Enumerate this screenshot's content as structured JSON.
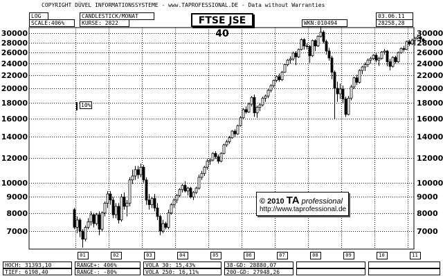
{
  "copyright": "COPYRIGHT DÜVEL INFORMATIONSSYSTEME - www.TAPROFESSIONAL.DE - Data without Warranties",
  "header": {
    "log": "LOG",
    "scale": "SCALE:406%",
    "chart_type": "CANDLESTICK/MONAT",
    "kurse": "KURSE: 2822",
    "wkn": "WKN:010494",
    "date": "03.06.11",
    "last": "28258,28"
  },
  "title": "FTSE JSE 40",
  "pct_marker": "10%",
  "stamp": {
    "copy": "© 2010",
    "ta": "TA",
    "pro": "professional",
    "url": "http://www.taprofessional.de"
  },
  "footer": {
    "hoch": "HOCH: 31393,10",
    "tief": "TIEF: 6198,40",
    "range_plus": "RANGE+:   406%",
    "range_minus": "RANGE-:  -80%",
    "vola30": "VOLA  30: 15,43%",
    "vola250": "VOLA 250: 16,11%",
    "gd38": "38-GD: 28880,07",
    "gd200": "200-GD: 27948,26"
  },
  "colors": {
    "up": "#ffffff",
    "down": "#000000",
    "grid": "#000000"
  },
  "chart_data": {
    "type": "candlestick",
    "title": "FTSE JSE 40",
    "period": "monthly",
    "y_scale": "log",
    "ylim": [
      6198,
      31393
    ],
    "y_ticks": [
      7000,
      8000,
      9000,
      10000,
      12000,
      14000,
      16000,
      18000,
      20000,
      22000,
      24000,
      26000,
      28000,
      30000
    ],
    "x_ticks": [
      "01",
      "02",
      "03",
      "04",
      "05",
      "06",
      "07",
      "08",
      "09",
      "10",
      "11"
    ],
    "grid": true,
    "candles": [
      {
        "t": "2000-12",
        "o": 8200,
        "h": 8300,
        "l": 7100,
        "c": 7200
      },
      {
        "t": "2001-01",
        "o": 7200,
        "h": 7800,
        "l": 6900,
        "c": 7600
      },
      {
        "t": "2001-02",
        "o": 7600,
        "h": 7700,
        "l": 6700,
        "c": 7000
      },
      {
        "t": "2001-03",
        "o": 7000,
        "h": 7100,
        "l": 6200,
        "c": 6600
      },
      {
        "t": "2001-04",
        "o": 6600,
        "h": 7300,
        "l": 6500,
        "c": 7200
      },
      {
        "t": "2001-05",
        "o": 7200,
        "h": 7700,
        "l": 7100,
        "c": 7500
      },
      {
        "t": "2001-06",
        "o": 7500,
        "h": 8100,
        "l": 7300,
        "c": 7900
      },
      {
        "t": "2001-07",
        "o": 7900,
        "h": 8000,
        "l": 7200,
        "c": 7400
      },
      {
        "t": "2001-08",
        "o": 7400,
        "h": 8000,
        "l": 7300,
        "c": 7900
      },
      {
        "t": "2001-09",
        "o": 7900,
        "h": 8100,
        "l": 6800,
        "c": 7100
      },
      {
        "t": "2001-10",
        "o": 7100,
        "h": 8100,
        "l": 7000,
        "c": 8000
      },
      {
        "t": "2001-11",
        "o": 8000,
        "h": 8700,
        "l": 7800,
        "c": 8600
      },
      {
        "t": "2001-12",
        "o": 8600,
        "h": 9400,
        "l": 8300,
        "c": 9200
      },
      {
        "t": "2002-01",
        "o": 9200,
        "h": 9400,
        "l": 8500,
        "c": 8800
      },
      {
        "t": "2002-02",
        "o": 8800,
        "h": 9000,
        "l": 7700,
        "c": 7900
      },
      {
        "t": "2002-03",
        "o": 7900,
        "h": 8600,
        "l": 7700,
        "c": 8400
      },
      {
        "t": "2002-04",
        "o": 8400,
        "h": 8600,
        "l": 7400,
        "c": 7600
      },
      {
        "t": "2002-05",
        "o": 7600,
        "h": 9200,
        "l": 7500,
        "c": 9000
      },
      {
        "t": "2002-06",
        "o": 9000,
        "h": 9300,
        "l": 8200,
        "c": 8400
      },
      {
        "t": "2002-07",
        "o": 8400,
        "h": 8800,
        "l": 7800,
        "c": 8600
      },
      {
        "t": "2002-08",
        "o": 8600,
        "h": 10400,
        "l": 8400,
        "c": 10200
      },
      {
        "t": "2002-09",
        "o": 10200,
        "h": 11000,
        "l": 9900,
        "c": 10500
      },
      {
        "t": "2002-10",
        "o": 10500,
        "h": 11300,
        "l": 10200,
        "c": 11000
      },
      {
        "t": "2002-11",
        "o": 11000,
        "h": 11300,
        "l": 10300,
        "c": 10600
      },
      {
        "t": "2002-12",
        "o": 10600,
        "h": 11500,
        "l": 10400,
        "c": 11200
      },
      {
        "t": "2003-01",
        "o": 11200,
        "h": 11400,
        "l": 10000,
        "c": 10200
      },
      {
        "t": "2003-02",
        "o": 10200,
        "h": 10400,
        "l": 8500,
        "c": 8800
      },
      {
        "t": "2003-03",
        "o": 8800,
        "h": 9200,
        "l": 8200,
        "c": 8500
      },
      {
        "t": "2003-04",
        "o": 8500,
        "h": 9000,
        "l": 8300,
        "c": 8900
      },
      {
        "t": "2003-05",
        "o": 8900,
        "h": 9200,
        "l": 8100,
        "c": 8300
      },
      {
        "t": "2003-06",
        "o": 8300,
        "h": 8600,
        "l": 7600,
        "c": 7800
      },
      {
        "t": "2003-07",
        "o": 7800,
        "h": 7900,
        "l": 6800,
        "c": 7000
      },
      {
        "t": "2003-08",
        "o": 7000,
        "h": 7600,
        "l": 6900,
        "c": 7400
      },
      {
        "t": "2003-09",
        "o": 7400,
        "h": 7500,
        "l": 7100,
        "c": 7200
      },
      {
        "t": "2003-10",
        "o": 7200,
        "h": 8200,
        "l": 7100,
        "c": 8000
      },
      {
        "t": "2003-11",
        "o": 8000,
        "h": 8600,
        "l": 7900,
        "c": 8500
      },
      {
        "t": "2003-12",
        "o": 8500,
        "h": 8900,
        "l": 8300,
        "c": 8800
      },
      {
        "t": "2004-01",
        "o": 8800,
        "h": 9200,
        "l": 8600,
        "c": 9100
      },
      {
        "t": "2004-02",
        "o": 9100,
        "h": 9600,
        "l": 9000,
        "c": 9500
      },
      {
        "t": "2004-03",
        "o": 9500,
        "h": 9900,
        "l": 9300,
        "c": 9800
      },
      {
        "t": "2004-04",
        "o": 9800,
        "h": 10100,
        "l": 9300,
        "c": 9400
      },
      {
        "t": "2004-05",
        "o": 9400,
        "h": 9700,
        "l": 9100,
        "c": 9600
      },
      {
        "t": "2004-06",
        "o": 9600,
        "h": 9700,
        "l": 8900,
        "c": 9000
      },
      {
        "t": "2004-07",
        "o": 9000,
        "h": 9400,
        "l": 8800,
        "c": 9300
      },
      {
        "t": "2004-08",
        "o": 9300,
        "h": 9700,
        "l": 9200,
        "c": 9600
      },
      {
        "t": "2004-09",
        "o": 9600,
        "h": 10600,
        "l": 9500,
        "c": 10400
      },
      {
        "t": "2004-10",
        "o": 10400,
        "h": 10900,
        "l": 10200,
        "c": 10700
      },
      {
        "t": "2004-11",
        "o": 10700,
        "h": 11300,
        "l": 10500,
        "c": 11200
      },
      {
        "t": "2004-12",
        "o": 11200,
        "h": 11900,
        "l": 11000,
        "c": 11700
      },
      {
        "t": "2005-01",
        "o": 11700,
        "h": 12000,
        "l": 11400,
        "c": 11800
      },
      {
        "t": "2005-02",
        "o": 11800,
        "h": 12500,
        "l": 11700,
        "c": 12400
      },
      {
        "t": "2005-03",
        "o": 12400,
        "h": 12600,
        "l": 11900,
        "c": 12100
      },
      {
        "t": "2005-04",
        "o": 12100,
        "h": 12300,
        "l": 11500,
        "c": 11700
      },
      {
        "t": "2005-05",
        "o": 11700,
        "h": 12500,
        "l": 11600,
        "c": 12400
      },
      {
        "t": "2005-06",
        "o": 12400,
        "h": 13300,
        "l": 12300,
        "c": 13200
      },
      {
        "t": "2005-07",
        "o": 13200,
        "h": 13700,
        "l": 13000,
        "c": 13500
      },
      {
        "t": "2005-08",
        "o": 13500,
        "h": 14100,
        "l": 13300,
        "c": 13900
      },
      {
        "t": "2005-09",
        "o": 13900,
        "h": 14700,
        "l": 13800,
        "c": 14600
      },
      {
        "t": "2005-10",
        "o": 14600,
        "h": 14800,
        "l": 14000,
        "c": 14300
      },
      {
        "t": "2005-11",
        "o": 14300,
        "h": 15300,
        "l": 14200,
        "c": 15200
      },
      {
        "t": "2005-12",
        "o": 15200,
        "h": 16300,
        "l": 15100,
        "c": 16100
      },
      {
        "t": "2006-01",
        "o": 16100,
        "h": 17300,
        "l": 16000,
        "c": 17100
      },
      {
        "t": "2006-02",
        "o": 17100,
        "h": 17500,
        "l": 16600,
        "c": 16800
      },
      {
        "t": "2006-03",
        "o": 16800,
        "h": 18000,
        "l": 16700,
        "c": 17800
      },
      {
        "t": "2006-04",
        "o": 17800,
        "h": 18900,
        "l": 17500,
        "c": 18700
      },
      {
        "t": "2006-05",
        "o": 18700,
        "h": 19100,
        "l": 16200,
        "c": 16700
      },
      {
        "t": "2006-06",
        "o": 16700,
        "h": 17600,
        "l": 16100,
        "c": 17400
      },
      {
        "t": "2006-07",
        "o": 17400,
        "h": 17900,
        "l": 16900,
        "c": 17700
      },
      {
        "t": "2006-08",
        "o": 17700,
        "h": 18800,
        "l": 17500,
        "c": 18600
      },
      {
        "t": "2006-09",
        "o": 18600,
        "h": 19100,
        "l": 18100,
        "c": 18900
      },
      {
        "t": "2006-10",
        "o": 18900,
        "h": 19900,
        "l": 18600,
        "c": 19700
      },
      {
        "t": "2006-11",
        "o": 19700,
        "h": 20600,
        "l": 19400,
        "c": 20400
      },
      {
        "t": "2006-12",
        "o": 20400,
        "h": 21300,
        "l": 20100,
        "c": 21200
      },
      {
        "t": "2007-01",
        "o": 21200,
        "h": 22000,
        "l": 20900,
        "c": 21800
      },
      {
        "t": "2007-02",
        "o": 21800,
        "h": 22300,
        "l": 21000,
        "c": 21300
      },
      {
        "t": "2007-03",
        "o": 21300,
        "h": 22700,
        "l": 21100,
        "c": 22500
      },
      {
        "t": "2007-04",
        "o": 22500,
        "h": 24000,
        "l": 22400,
        "c": 23800
      },
      {
        "t": "2007-05",
        "o": 23800,
        "h": 24800,
        "l": 23500,
        "c": 24600
      },
      {
        "t": "2007-06",
        "o": 24600,
        "h": 25300,
        "l": 24000,
        "c": 24800
      },
      {
        "t": "2007-07",
        "o": 24800,
        "h": 26200,
        "l": 24500,
        "c": 25900
      },
      {
        "t": "2007-08",
        "o": 25900,
        "h": 26300,
        "l": 23700,
        "c": 25200
      },
      {
        "t": "2007-09",
        "o": 25200,
        "h": 26800,
        "l": 25000,
        "c": 26600
      },
      {
        "t": "2007-10",
        "o": 26600,
        "h": 28900,
        "l": 26400,
        "c": 28600
      },
      {
        "t": "2007-11",
        "o": 28600,
        "h": 28900,
        "l": 26600,
        "c": 27300
      },
      {
        "t": "2007-12",
        "o": 27300,
        "h": 27800,
        "l": 26600,
        "c": 27200
      },
      {
        "t": "2008-01",
        "o": 27200,
        "h": 27500,
        "l": 24100,
        "c": 25400
      },
      {
        "t": "2008-02",
        "o": 25400,
        "h": 28600,
        "l": 25200,
        "c": 28400
      },
      {
        "t": "2008-03",
        "o": 28400,
        "h": 28700,
        "l": 26300,
        "c": 27300
      },
      {
        "t": "2008-04",
        "o": 27300,
        "h": 29500,
        "l": 27100,
        "c": 29300
      },
      {
        "t": "2008-05",
        "o": 29300,
        "h": 31393,
        "l": 29000,
        "c": 30200
      },
      {
        "t": "2008-06",
        "o": 30200,
        "h": 30600,
        "l": 27800,
        "c": 28200
      },
      {
        "t": "2008-07",
        "o": 28200,
        "h": 28600,
        "l": 25600,
        "c": 26300
      },
      {
        "t": "2008-08",
        "o": 26300,
        "h": 26900,
        "l": 24500,
        "c": 25000
      },
      {
        "t": "2008-09",
        "o": 25000,
        "h": 25400,
        "l": 21400,
        "c": 22500
      },
      {
        "t": "2008-10",
        "o": 22500,
        "h": 22800,
        "l": 16000,
        "c": 20000
      },
      {
        "t": "2008-11",
        "o": 20000,
        "h": 21000,
        "l": 18100,
        "c": 19200
      },
      {
        "t": "2008-12",
        "o": 19200,
        "h": 20700,
        "l": 18500,
        "c": 19900
      },
      {
        "t": "2009-01",
        "o": 19900,
        "h": 20400,
        "l": 17900,
        "c": 18500
      },
      {
        "t": "2009-02",
        "o": 18500,
        "h": 18800,
        "l": 16200,
        "c": 16500
      },
      {
        "t": "2009-03",
        "o": 16500,
        "h": 18900,
        "l": 16400,
        "c": 18600
      },
      {
        "t": "2009-04",
        "o": 18600,
        "h": 20500,
        "l": 18300,
        "c": 20200
      },
      {
        "t": "2009-05",
        "o": 20200,
        "h": 21800,
        "l": 19900,
        "c": 21600
      },
      {
        "t": "2009-06",
        "o": 21600,
        "h": 22100,
        "l": 20500,
        "c": 20900
      },
      {
        "t": "2009-07",
        "o": 20900,
        "h": 23000,
        "l": 20700,
        "c": 22800
      },
      {
        "t": "2009-08",
        "o": 22800,
        "h": 23600,
        "l": 22200,
        "c": 23400
      },
      {
        "t": "2009-09",
        "o": 23400,
        "h": 24200,
        "l": 22700,
        "c": 23800
      },
      {
        "t": "2009-10",
        "o": 23800,
        "h": 24900,
        "l": 23400,
        "c": 24600
      },
      {
        "t": "2009-11",
        "o": 24600,
        "h": 25200,
        "l": 24000,
        "c": 24900
      },
      {
        "t": "2009-12",
        "o": 24900,
        "h": 25700,
        "l": 24600,
        "c": 25500
      },
      {
        "t": "2010-01",
        "o": 25500,
        "h": 26000,
        "l": 24200,
        "c": 24600
      },
      {
        "t": "2010-02",
        "o": 24600,
        "h": 25200,
        "l": 23600,
        "c": 24900
      },
      {
        "t": "2010-03",
        "o": 24900,
        "h": 26300,
        "l": 24700,
        "c": 26100
      },
      {
        "t": "2010-04",
        "o": 26100,
        "h": 26700,
        "l": 25600,
        "c": 26300
      },
      {
        "t": "2010-05",
        "o": 26300,
        "h": 26500,
        "l": 23500,
        "c": 24300
      },
      {
        "t": "2010-06",
        "o": 24300,
        "h": 24800,
        "l": 22800,
        "c": 23500
      },
      {
        "t": "2010-07",
        "o": 23500,
        "h": 25300,
        "l": 23300,
        "c": 25100
      },
      {
        "t": "2010-08",
        "o": 25100,
        "h": 25400,
        "l": 24000,
        "c": 24300
      },
      {
        "t": "2010-09",
        "o": 24300,
        "h": 26200,
        "l": 24100,
        "c": 26000
      },
      {
        "t": "2010-10",
        "o": 26000,
        "h": 27000,
        "l": 25800,
        "c": 26800
      },
      {
        "t": "2010-11",
        "o": 26800,
        "h": 27300,
        "l": 26200,
        "c": 26600
      },
      {
        "t": "2010-12",
        "o": 26600,
        "h": 28400,
        "l": 26500,
        "c": 28200
      },
      {
        "t": "2011-01",
        "o": 28200,
        "h": 28600,
        "l": 27300,
        "c": 27700
      },
      {
        "t": "2011-02",
        "o": 27700,
        "h": 28800,
        "l": 27500,
        "c": 28500
      },
      {
        "t": "2011-03",
        "o": 28500,
        "h": 29200,
        "l": 27400,
        "c": 28900
      },
      {
        "t": "2011-04",
        "o": 28900,
        "h": 29600,
        "l": 28600,
        "c": 29200
      },
      {
        "t": "2011-05",
        "o": 29200,
        "h": 29500,
        "l": 28300,
        "c": 28700
      },
      {
        "t": "2011-06",
        "o": 28700,
        "h": 28900,
        "l": 28100,
        "c": 28258
      }
    ]
  }
}
